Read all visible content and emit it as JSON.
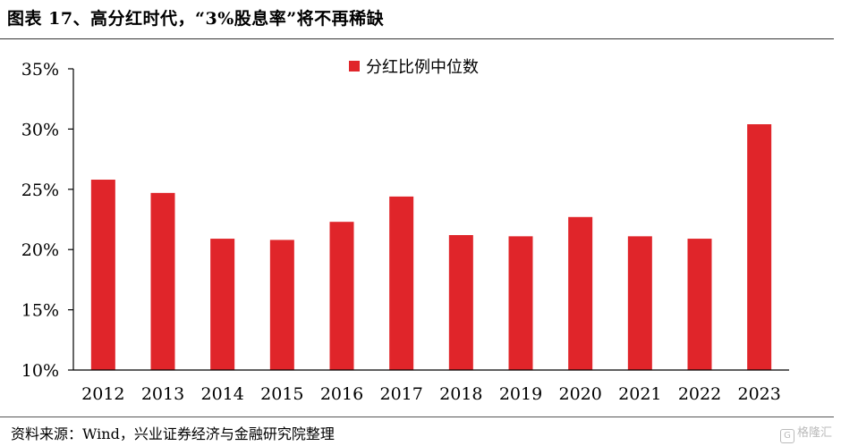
{
  "header": {
    "title": "图表 17、高分红时代，“3%股息率”将不再稀缺"
  },
  "footer": {
    "source": "资料来源：Wind，兴业证券经济与金融研究院整理",
    "watermark_logo": "G",
    "watermark_text": "格隆汇"
  },
  "colors": {
    "bar": "#e0252a",
    "axis": "#000000"
  },
  "chart_data": {
    "type": "bar",
    "title": "",
    "xlabel": "",
    "ylabel": "",
    "categories": [
      "2012",
      "2013",
      "2014",
      "2015",
      "2016",
      "2017",
      "2018",
      "2019",
      "2020",
      "2021",
      "2022",
      "2023"
    ],
    "series": [
      {
        "name": "分红比例中位数",
        "values": [
          25.8,
          24.7,
          20.9,
          20.8,
          22.3,
          24.4,
          21.2,
          21.1,
          22.7,
          21.1,
          20.9,
          30.4
        ]
      }
    ],
    "ylim": [
      10,
      35
    ],
    "yticks": [
      10,
      15,
      20,
      25,
      30,
      35
    ],
    "ytick_labels": [
      "10%",
      "15%",
      "20%",
      "25%",
      "30%",
      "35%"
    ],
    "grid": false,
    "legend_position": "top-center"
  }
}
